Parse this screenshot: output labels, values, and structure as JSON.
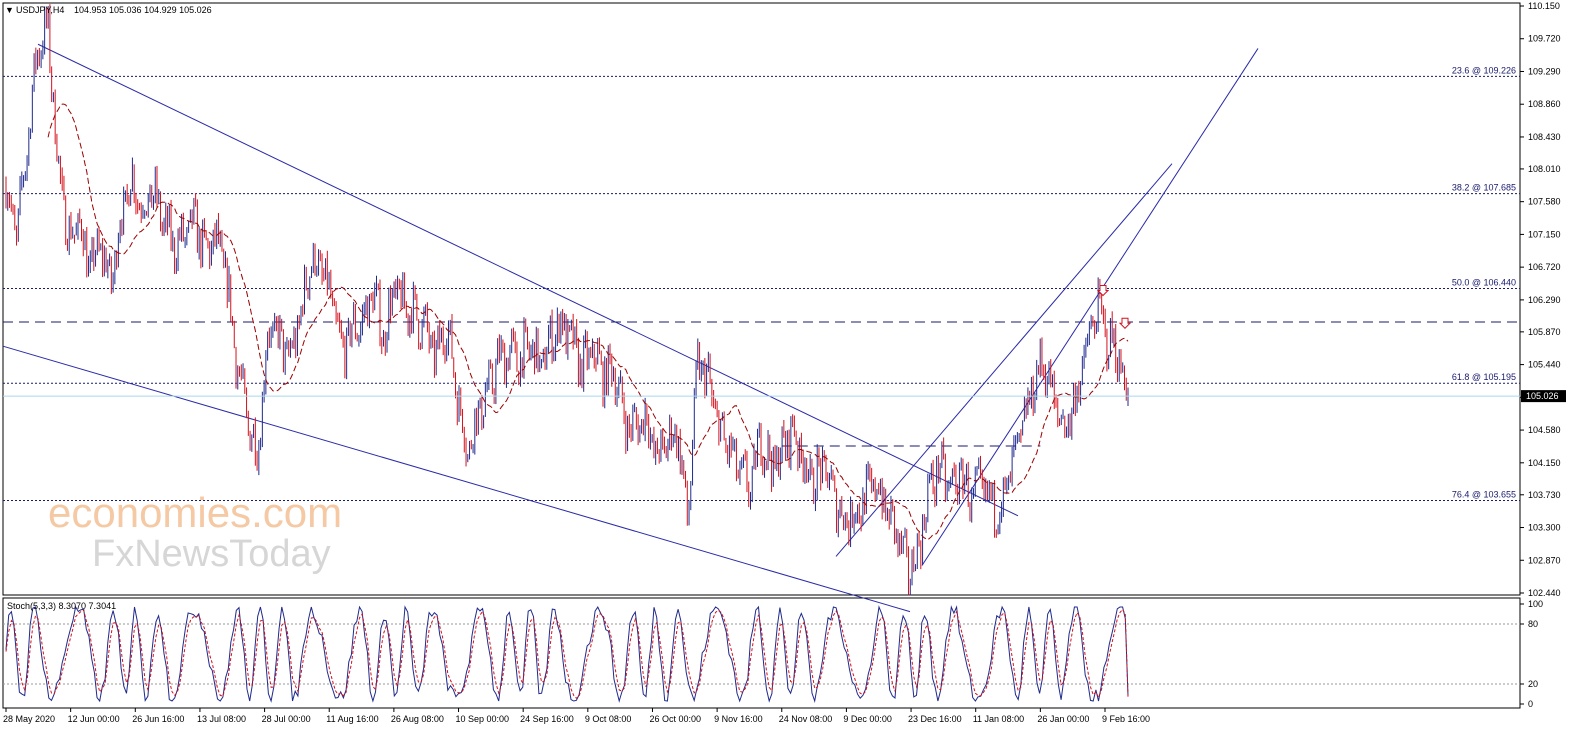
{
  "header": {
    "symbol": "USDJPY,H4",
    "ohlc": "104.953 105.036 104.929 105.026"
  },
  "stoch_header": "Stoch(5,3,3) 8.3070 7.3041",
  "watermark": {
    "line1": "economies.com",
    "line2": "FxNewsToday"
  },
  "colors": {
    "bull_candle": "#1f2a8c",
    "bear_candle": "#d4111b",
    "ma_line": "#9b0000",
    "trendline": "#2a2aa8",
    "fib_line": "#1a1a6e",
    "current_price_line": "#a8d8ec",
    "price_tag_bg": "#000000",
    "stoch_main": "#1f2a8c",
    "stoch_signal": "#d4111b",
    "arrow": "#d4111b"
  },
  "chart_data": [
    {
      "type": "candlestick",
      "symbol": "USDJPY",
      "timeframe": "H4",
      "title": "USDJPY,H4",
      "last_ohlc": {
        "open": 104.953,
        "high": 105.036,
        "low": 104.929,
        "close": 105.026
      },
      "current_price": 105.026,
      "current_price_label": "105.026",
      "ylim": [
        102.44,
        110.15
      ],
      "yticks": [
        "110.150",
        "109.720",
        "109.290",
        "108.860",
        "108.430",
        "108.010",
        "107.580",
        "107.150",
        "106.720",
        "106.290",
        "105.870",
        "105.440",
        "105.010",
        "104.580",
        "104.150",
        "103.730",
        "103.300",
        "102.870",
        "102.440"
      ],
      "xticks": [
        "28 May 2020",
        "12 Jun 00:00",
        "26 Jun 16:00",
        "13 Jul 08:00",
        "28 Jul 00:00",
        "11 Aug 16:00",
        "26 Aug 08:00",
        "10 Sep 00:00",
        "24 Sep 16:00",
        "9 Oct 08:00",
        "26 Oct 00:00",
        "9 Nov 16:00",
        "24 Nov 08:00",
        "9 Dec 00:00",
        "23 Dec 16:00",
        "11 Jan 08:00",
        "26 Jan 00:00",
        "9 Feb 16:00"
      ],
      "fibonacci": [
        {
          "label": "23.6 @ 109.226",
          "value": 109.226
        },
        {
          "label": "38.2 @ 107.685",
          "value": 107.685
        },
        {
          "label": "50.0 @ 106.440",
          "value": 106.44
        },
        {
          "label": "61.8 @ 105.195",
          "value": 105.195
        },
        {
          "label": "76.4 @ 103.655",
          "value": 103.655
        }
      ],
      "horizontal_levels": [
        {
          "style": "dashed",
          "value": 106.0
        },
        {
          "style": "dashed",
          "value": 104.37,
          "from": "24 Nov 08:00",
          "to": "26 Jan 00:00"
        }
      ],
      "trendlines": [
        {
          "name": "descending channel upper",
          "from": [
            "28 May 2020",
            109.85
          ],
          "to": [
            "23 Dec 16:00",
            104.13
          ]
        },
        {
          "name": "descending channel lower",
          "from": [
            "28 May 2020",
            105.67
          ],
          "to": [
            "9 Dec 00:00",
            102.44
          ]
        },
        {
          "name": "ascending channel upper",
          "from": [
            "9 Dec 00:00",
            103.08
          ],
          "to": [
            "9 Feb 16:00",
            107.05
          ]
        },
        {
          "name": "ascending channel lower",
          "from": [
            "23 Dec 16:00",
            102.58
          ],
          "to": [
            "9 Feb 16:00",
            106.5
          ]
        }
      ],
      "signal_arrows": [
        {
          "direction": "down",
          "value": 106.4,
          "time": "9 Feb 16:00"
        },
        {
          "direction": "down",
          "value": 105.97,
          "time": "9 Feb 16:00"
        }
      ],
      "price_path": [
        [
          "28 May 2020",
          107.8
        ],
        [
          "",
          107.1
        ],
        [
          "",
          108.3
        ],
        [
          "",
          109.6
        ],
        [
          "",
          109.85
        ],
        [
          "",
          108.0
        ],
        [
          "12 Jun 00:00",
          107.1
        ],
        [
          "",
          107.3
        ],
        [
          "",
          106.7
        ],
        [
          "",
          107.0
        ],
        [
          "",
          106.5
        ],
        [
          "",
          107.4
        ],
        [
          "26 Jun 16:00",
          107.9
        ],
        [
          "",
          107.5
        ],
        [
          "",
          107.7
        ],
        [
          "",
          107.3
        ],
        [
          "",
          107.0
        ],
        [
          "",
          107.1
        ],
        [
          "13 Jul 08:00",
          107.3
        ],
        [
          "",
          106.9
        ],
        [
          "",
          107.1
        ],
        [
          "",
          106.6
        ],
        [
          "",
          105.5
        ],
        [
          "",
          104.7
        ],
        [
          "28 Jul 00:00",
          104.3
        ],
        [
          "",
          105.9
        ],
        [
          "",
          105.8
        ],
        [
          "",
          105.5
        ],
        [
          "",
          106.0
        ],
        [
          "",
          106.8
        ],
        [
          "11 Aug 16:00",
          106.7
        ],
        [
          "",
          106.3
        ],
        [
          "",
          105.6
        ],
        [
          "",
          105.9
        ],
        [
          "",
          106.0
        ],
        [
          "",
          106.4
        ],
        [
          "26 Aug 08:00",
          105.8
        ],
        [
          "",
          106.4
        ],
        [
          "",
          106.2
        ],
        [
          "",
          106.1
        ],
        [
          "",
          105.9
        ],
        [
          "",
          105.5
        ],
        [
          "10 Sep 00:00",
          106.0
        ],
        [
          "",
          105.1
        ],
        [
          "",
          104.3
        ],
        [
          "",
          104.8
        ],
        [
          "",
          105.1
        ],
        [
          "",
          105.5
        ],
        [
          "24 Sep 16:00",
          105.6
        ],
        [
          "",
          105.5
        ],
        [
          "",
          105.7
        ],
        [
          "",
          105.4
        ],
        [
          "",
          105.8
        ],
        [
          "",
          106.0
        ],
        [
          "9 Oct 08:00",
          105.7
        ],
        [
          "",
          105.4
        ],
        [
          "",
          105.6
        ],
        [
          "",
          105.3
        ],
        [
          "",
          105.4
        ],
        [
          "",
          104.7
        ],
        [
          "26 Oct 00:00",
          104.6
        ],
        [
          "",
          104.8
        ],
        [
          "",
          104.2
        ],
        [
          "",
          104.4
        ],
        [
          "",
          104.6
        ],
        [
          "",
          103.4
        ],
        [
          "9 Nov 16:00",
          105.5
        ],
        [
          "",
          105.2
        ],
        [
          "",
          104.6
        ],
        [
          "",
          104.3
        ],
        [
          "",
          104.0
        ],
        [
          "",
          103.8
        ],
        [
          "24 Nov 08:00",
          104.5
        ],
        [
          "",
          104.1
        ],
        [
          "",
          104.3
        ],
        [
          "",
          104.6
        ],
        [
          "",
          104.2
        ],
        [
          "",
          103.9
        ],
        [
          "9 Dec 00:00",
          104.1
        ],
        [
          "",
          103.7
        ],
        [
          "",
          103.4
        ],
        [
          "",
          103.5
        ],
        [
          "",
          103.7
        ],
        [
          "",
          103.9
        ],
        [
          "23 Dec 16:00",
          103.5
        ],
        [
          "",
          103.2
        ],
        [
          "",
          102.7
        ],
        [
          "",
          103.0
        ],
        [
          "",
          103.8
        ],
        [
          "",
          104.1
        ],
        [
          "11 Jan 08:00",
          103.8
        ],
        [
          "",
          104.0
        ],
        [
          "",
          103.7
        ],
        [
          "",
          103.8
        ],
        [
          "",
          103.6
        ],
        [
          "",
          103.6
        ],
        [
          "26 Jan 00:00",
          104.1
        ],
        [
          "",
          104.6
        ],
        [
          "",
          105.2
        ],
        [
          "",
          105.5
        ],
        [
          "",
          104.9
        ],
        [
          "",
          104.6
        ],
        [
          "9 Feb 16:00",
          105.0
        ],
        [
          "",
          105.6
        ],
        [
          "",
          106.2
        ],
        [
          "",
          105.8
        ],
        [
          "",
          105.6
        ],
        [
          "",
          105.026
        ]
      ]
    },
    {
      "type": "line",
      "title": "Stoch(5,3,3) 8.3070 7.3041",
      "main_value": 8.307,
      "signal_value": 7.3041,
      "ylim": [
        0,
        100
      ],
      "yticks": [
        "100",
        "80",
        "20",
        "0"
      ],
      "levels": [
        80,
        20
      ]
    }
  ]
}
